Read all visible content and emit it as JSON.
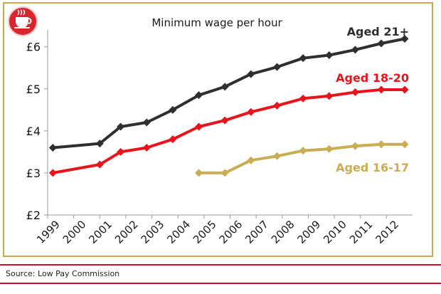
{
  "chart_data": {
    "type": "line",
    "title": "Minimum wage per hour",
    "categories": [
      "1999",
      "2000",
      "2001",
      "2002",
      "2003",
      "2004",
      "2005",
      "2006",
      "2007",
      "2008",
      "2009",
      "2010",
      "2011",
      "2012"
    ],
    "ylim": [
      2,
      6.3
    ],
    "yticks": [
      2,
      3,
      4,
      5,
      6
    ],
    "ytick_labels": [
      "£2",
      "£3",
      "£4",
      "£5",
      "£6"
    ],
    "grid": false,
    "series": [
      {
        "name": "Aged 21+",
        "color": "#2f2f2f",
        "x": [
          1999.2,
          2001.0,
          2001.8,
          2002.8,
          2003.8,
          2004.8,
          2005.8,
          2006.8,
          2007.8,
          2008.8,
          2009.8,
          2010.8,
          2011.8,
          2012.7
        ],
        "values": [
          3.6,
          3.7,
          4.1,
          4.2,
          4.5,
          4.85,
          5.05,
          5.35,
          5.52,
          5.73,
          5.8,
          5.93,
          6.08,
          6.19
        ]
      },
      {
        "name": "Aged 18-20",
        "color": "#e8131c",
        "x": [
          1999.2,
          2001.0,
          2001.8,
          2002.8,
          2003.8,
          2004.8,
          2005.8,
          2006.8,
          2007.8,
          2008.8,
          2009.8,
          2010.8,
          2011.8,
          2012.7
        ],
        "values": [
          3.0,
          3.2,
          3.5,
          3.6,
          3.8,
          4.1,
          4.25,
          4.45,
          4.6,
          4.77,
          4.83,
          4.92,
          4.98,
          4.98
        ]
      },
      {
        "name": "Aged 16-17",
        "color": "#c9ad52",
        "x": [
          2004.8,
          2005.8,
          2006.8,
          2007.8,
          2008.8,
          2009.8,
          2010.8,
          2011.8,
          2012.7
        ],
        "values": [
          3.0,
          3.0,
          3.3,
          3.4,
          3.53,
          3.57,
          3.64,
          3.68,
          3.68
        ]
      }
    ]
  },
  "source": "Source: Low Pay Commission",
  "colors": {
    "frame": "#c8a94a",
    "rule": "#c8102e",
    "logo": "#d9252e"
  },
  "logo_icon": "coffee-cup-icon"
}
